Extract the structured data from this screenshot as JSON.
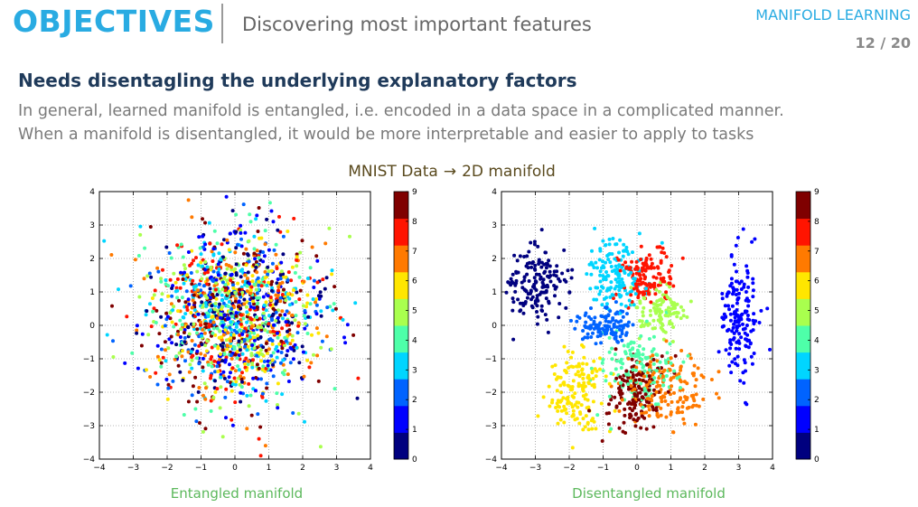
{
  "header": {
    "title": "OBJECTIVES",
    "subtitle": "Discovering most important features",
    "section": "MANIFOLD LEARNING",
    "page_current": "12",
    "page_sep": " / ",
    "page_total": "20",
    "title_color": "#29abe2"
  },
  "content": {
    "headline": "Needs disentagling the underlying explanatory factors",
    "line1": "In general, learned manifold is entangled, i.e. encoded in a data space in a complicated manner.",
    "line2": "When a manifold is disentangled, it would be more interpretable and easier to apply to tasks"
  },
  "figure": {
    "title_left": "MNIST Data",
    "arrow": "→",
    "title_right": "2D manifold",
    "caption_left": "Entangled manifold",
    "caption_right": "Disentangled manifold"
  },
  "chart_data": [
    {
      "type": "scatter",
      "title": "Entangled manifold",
      "xlim": [
        -4,
        4
      ],
      "ylim": [
        -4,
        4
      ],
      "xticks": [
        "−4",
        "−3",
        "−2",
        "−1",
        "0",
        "1",
        "2",
        "3",
        "4"
      ],
      "yticks": [
        "4",
        "3",
        "2",
        "1",
        "0",
        "−1",
        "−2",
        "−3",
        "−4"
      ],
      "grid": true,
      "colorbar": {
        "labels": [
          "0",
          "1",
          "2",
          "3",
          "4",
          "5",
          "6",
          "7",
          "8",
          "9"
        ],
        "colors": [
          "#00007f",
          "#0000ff",
          "#0063ff",
          "#00d5ff",
          "#4effa9",
          "#a9ff4e",
          "#ffe600",
          "#ff7a00",
          "#ff1400",
          "#7f0000"
        ]
      },
      "clusters": [
        {
          "digit": 0,
          "center": [
            0,
            0.3
          ],
          "spread": [
            1.25,
            1.3
          ],
          "count": 150
        },
        {
          "digit": 1,
          "center": [
            0,
            0.3
          ],
          "spread": [
            1.25,
            1.3
          ],
          "count": 150
        },
        {
          "digit": 2,
          "center": [
            0,
            0.3
          ],
          "spread": [
            1.25,
            1.3
          ],
          "count": 150
        },
        {
          "digit": 3,
          "center": [
            0,
            0.3
          ],
          "spread": [
            1.25,
            1.3
          ],
          "count": 150
        },
        {
          "digit": 4,
          "center": [
            0,
            0.3
          ],
          "spread": [
            1.25,
            1.3
          ],
          "count": 150
        },
        {
          "digit": 5,
          "center": [
            0,
            0.3
          ],
          "spread": [
            1.25,
            1.3
          ],
          "count": 150
        },
        {
          "digit": 6,
          "center": [
            0,
            0.3
          ],
          "spread": [
            1.25,
            1.3
          ],
          "count": 150
        },
        {
          "digit": 7,
          "center": [
            0,
            0.3
          ],
          "spread": [
            1.25,
            1.3
          ],
          "count": 150
        },
        {
          "digit": 8,
          "center": [
            0,
            0.3
          ],
          "spread": [
            1.25,
            1.3
          ],
          "count": 150
        },
        {
          "digit": 9,
          "center": [
            0,
            0.3
          ],
          "spread": [
            1.25,
            1.3
          ],
          "count": 150
        }
      ]
    },
    {
      "type": "scatter",
      "title": "Disentangled manifold",
      "xlim": [
        -4,
        4
      ],
      "ylim": [
        -4,
        4
      ],
      "xticks": [
        "−4",
        "−3",
        "−2",
        "−1",
        "0",
        "1",
        "2",
        "3",
        "4"
      ],
      "yticks": [
        "4",
        "3",
        "2",
        "1",
        "0",
        "−1",
        "−2",
        "−3",
        "−4"
      ],
      "grid": true,
      "colorbar": {
        "labels": [
          "0",
          "1",
          "2",
          "3",
          "4",
          "5",
          "6",
          "7",
          "8",
          "9"
        ],
        "colors": [
          "#00007f",
          "#0000ff",
          "#0063ff",
          "#00d5ff",
          "#4effa9",
          "#a9ff4e",
          "#ffe600",
          "#ff7a00",
          "#ff1400",
          "#7f0000"
        ]
      },
      "clusters": [
        {
          "digit": 0,
          "center": [
            -3.0,
            1.2
          ],
          "spread": [
            0.45,
            0.5
          ],
          "count": 160
        },
        {
          "digit": 1,
          "center": [
            3.0,
            0.2
          ],
          "spread": [
            0.3,
            0.9
          ],
          "count": 160
        },
        {
          "digit": 2,
          "center": [
            -0.9,
            0.0
          ],
          "spread": [
            0.45,
            0.25
          ],
          "count": 120
        },
        {
          "digit": 3,
          "center": [
            -0.6,
            1.6
          ],
          "spread": [
            0.4,
            0.55
          ],
          "count": 150
        },
        {
          "digit": 4,
          "center": [
            0.1,
            -1.2
          ],
          "spread": [
            0.6,
            0.55
          ],
          "count": 140
        },
        {
          "digit": 5,
          "center": [
            0.7,
            0.4
          ],
          "spread": [
            0.35,
            0.35
          ],
          "count": 110
        },
        {
          "digit": 6,
          "center": [
            -1.8,
            -2.0
          ],
          "spread": [
            0.45,
            0.6
          ],
          "count": 150
        },
        {
          "digit": 7,
          "center": [
            0.9,
            -2.0
          ],
          "spread": [
            0.6,
            0.6
          ],
          "count": 160
        },
        {
          "digit": 8,
          "center": [
            0.3,
            1.5
          ],
          "spread": [
            0.35,
            0.45
          ],
          "count": 130
        },
        {
          "digit": 9,
          "center": [
            -0.1,
            -2.0
          ],
          "spread": [
            0.45,
            0.6
          ],
          "count": 150
        }
      ]
    }
  ]
}
